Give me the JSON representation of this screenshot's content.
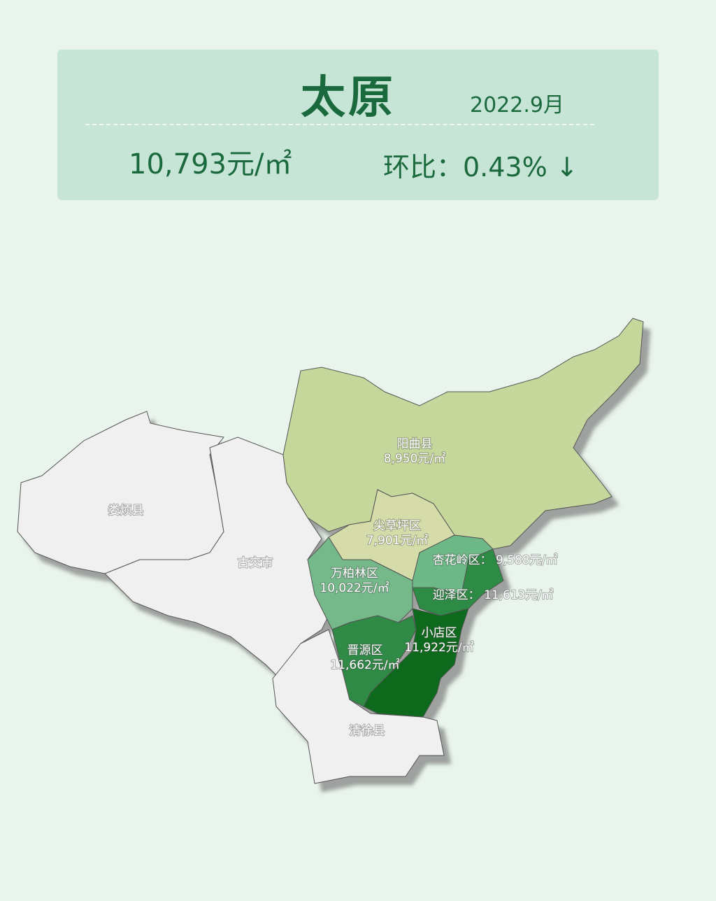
{
  "header": {
    "city": "太原",
    "date": "2022.9月",
    "avg_price": "10,793元/㎡",
    "mom_label": "环比：0.43%",
    "mom_direction_icon": "↓"
  },
  "map": {
    "regions": [
      {
        "id": "loufan",
        "name": "娄烦县",
        "price": "",
        "color": "#f0f0f0"
      },
      {
        "id": "gujiao",
        "name": "古交市",
        "price": "",
        "color": "#f0f0f0"
      },
      {
        "id": "qingxu",
        "name": "清徐县",
        "price": "",
        "color": "#f0f0f0"
      },
      {
        "id": "yangqu",
        "name": "阳曲县",
        "price": "8,950元/㎡",
        "color": "#c6d79c"
      },
      {
        "id": "jiancaoping",
        "name": "尖草坪区",
        "price": "7,901元/㎡",
        "color": "#d5dcaa"
      },
      {
        "id": "wanbailin",
        "name": "万柏林区",
        "price": "10,022元/㎡",
        "color": "#74b98a"
      },
      {
        "id": "xinghualing",
        "name": "杏花岭区",
        "price": "9,588元/㎡",
        "color": "#6db887"
      },
      {
        "id": "yingze",
        "name": "迎泽区",
        "price": "11,613元/㎡",
        "color": "#2f8b45"
      },
      {
        "id": "jinyuan",
        "name": "晋源区",
        "price": "11,662元/㎡",
        "color": "#2e8a44"
      },
      {
        "id": "xiaodian",
        "name": "小店区",
        "price": "11,922元/㎡",
        "color": "#0c6a1c"
      }
    ]
  }
}
